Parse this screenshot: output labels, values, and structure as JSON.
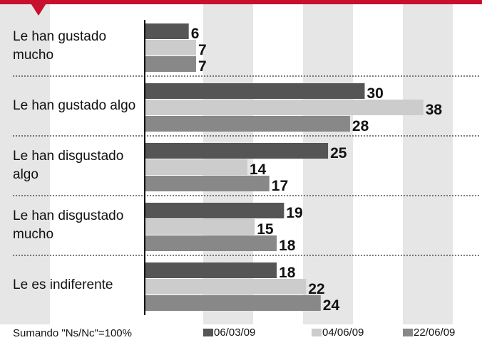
{
  "chart_data": {
    "type": "hbar",
    "categories": [
      "Le han gustado mucho",
      "Le han gustado algo",
      "Le han disgustado algo",
      "Le han disgustado mucho",
      "Le es indiferente"
    ],
    "series": [
      {
        "name": "06/03/09",
        "color": "#555555",
        "values": [
          6,
          30,
          25,
          19,
          18
        ]
      },
      {
        "name": "04/06/09",
        "color": "#cccccc",
        "values": [
          7,
          38,
          14,
          15,
          22
        ]
      },
      {
        "name": "22/06/09",
        "color": "#888888",
        "values": [
          7,
          28,
          17,
          18,
          24
        ]
      }
    ],
    "xlim": [
      0,
      46
    ]
  },
  "footnote": "Sumando \"Ns/Nc\"=100%"
}
